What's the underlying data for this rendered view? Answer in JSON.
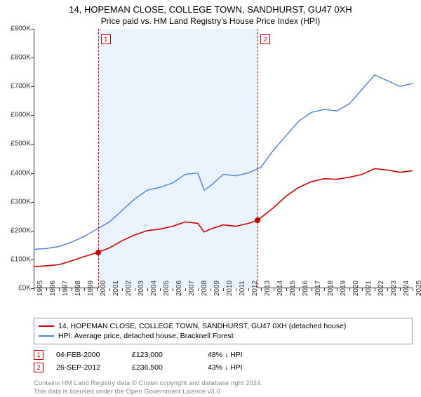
{
  "title": "14, HOPEMAN CLOSE, COLLEGE TOWN, SANDHURST, GU47 0XH",
  "subtitle": "Price paid vs. HM Land Registry's House Price Index (HPI)",
  "chart": {
    "type": "line",
    "background_color": "#ffffff",
    "shade_color": "#eaf2fb",
    "axis_color": "#333333",
    "ylim": [
      0,
      900
    ],
    "ytick_step": 100,
    "y_prefix": "£",
    "y_suffix": "K",
    "x_years": [
      1995,
      1996,
      1997,
      1998,
      1999,
      2000,
      2001,
      2002,
      2003,
      2004,
      2005,
      2006,
      2007,
      2008,
      2009,
      2010,
      2011,
      2012,
      2013,
      2014,
      2015,
      2016,
      2017,
      2018,
      2019,
      2020,
      2021,
      2022,
      2023,
      2024,
      2025
    ],
    "shade_start": 2000.1,
    "shade_end": 2012.74,
    "series": [
      {
        "name": "property",
        "color": "#cc0000",
        "width": 1.6,
        "points": [
          [
            1995,
            75
          ],
          [
            1996,
            78
          ],
          [
            1997,
            82
          ],
          [
            1998,
            95
          ],
          [
            1999,
            110
          ],
          [
            2000,
            123
          ],
          [
            2001,
            140
          ],
          [
            2002,
            165
          ],
          [
            2003,
            185
          ],
          [
            2004,
            200
          ],
          [
            2005,
            205
          ],
          [
            2006,
            215
          ],
          [
            2007,
            230
          ],
          [
            2008,
            225
          ],
          [
            2008.5,
            195
          ],
          [
            2009,
            205
          ],
          [
            2010,
            220
          ],
          [
            2011,
            215
          ],
          [
            2012,
            225
          ],
          [
            2012.74,
            236
          ],
          [
            2013,
            245
          ],
          [
            2014,
            280
          ],
          [
            2015,
            320
          ],
          [
            2016,
            350
          ],
          [
            2017,
            370
          ],
          [
            2018,
            380
          ],
          [
            2019,
            378
          ],
          [
            2020,
            385
          ],
          [
            2021,
            395
          ],
          [
            2022,
            415
          ],
          [
            2023,
            410
          ],
          [
            2024,
            402
          ],
          [
            2025,
            408
          ]
        ]
      },
      {
        "name": "hpi",
        "color": "#4a7fd1",
        "width": 1.4,
        "points": [
          [
            1995,
            135
          ],
          [
            1996,
            138
          ],
          [
            1997,
            145
          ],
          [
            1998,
            160
          ],
          [
            1999,
            180
          ],
          [
            2000,
            205
          ],
          [
            2001,
            230
          ],
          [
            2002,
            270
          ],
          [
            2003,
            310
          ],
          [
            2004,
            340
          ],
          [
            2005,
            350
          ],
          [
            2006,
            365
          ],
          [
            2007,
            395
          ],
          [
            2008,
            400
          ],
          [
            2008.5,
            340
          ],
          [
            2009,
            355
          ],
          [
            2010,
            395
          ],
          [
            2011,
            390
          ],
          [
            2012,
            400
          ],
          [
            2013,
            420
          ],
          [
            2014,
            480
          ],
          [
            2015,
            530
          ],
          [
            2016,
            580
          ],
          [
            2017,
            610
          ],
          [
            2018,
            620
          ],
          [
            2019,
            615
          ],
          [
            2020,
            640
          ],
          [
            2021,
            690
          ],
          [
            2022,
            740
          ],
          [
            2023,
            720
          ],
          [
            2024,
            700
          ],
          [
            2025,
            710
          ]
        ]
      }
    ],
    "events": [
      {
        "n": "1",
        "year": 2000.1,
        "price_y": 123,
        "color": "#cc0000"
      },
      {
        "n": "2",
        "year": 2012.74,
        "price_y": 236,
        "color": "#cc0000"
      }
    ]
  },
  "legend": {
    "items": [
      {
        "color": "#cc0000",
        "label": "14, HOPEMAN CLOSE, COLLEGE TOWN, SANDHURST, GU47 0XH (detached house)"
      },
      {
        "color": "#4a7fd1",
        "label": "HPI: Average price, detached house, Bracknell Forest"
      }
    ]
  },
  "event_table": [
    {
      "n": "1",
      "color": "#cc0000",
      "date": "04-FEB-2000",
      "price": "£123,000",
      "delta": "48% ↓ HPI"
    },
    {
      "n": "2",
      "color": "#cc0000",
      "date": "26-SEP-2012",
      "price": "£236,500",
      "delta": "43% ↓ HPI"
    }
  ],
  "footnote": {
    "line1": "Contains HM Land Registry data © Crown copyright and database right 2024.",
    "line2": "This data is licensed under the Open Government Licence v3.0."
  }
}
